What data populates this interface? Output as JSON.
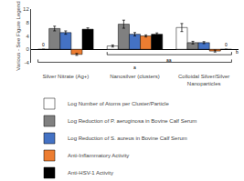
{
  "chart_data": {
    "type": "bar",
    "categories": [
      "Silver Nitrate (Ag+)",
      "Nanosilver (clusters)",
      "Colloidal Silver/Silver\nNanoparticles"
    ],
    "series": [
      {
        "name": "Log Number of Atoms per Cluster/Particle",
        "color": "#ffffff",
        "values": [
          0.0,
          1.0,
          6.5
        ],
        "errors": [
          0.0,
          0.3,
          1.2
        ]
      },
      {
        "name": "Log Reduction of P. aeruginosa in Bovine Calf Serum",
        "color": "#808080",
        "values": [
          6.2,
          7.5,
          2.0
        ],
        "errors": [
          0.7,
          1.2,
          0.4
        ]
      },
      {
        "name": "Log Reduction of S. aureus in Bovine Calf Serum",
        "color": "#4472c4",
        "values": [
          5.0,
          4.5,
          2.0
        ],
        "errors": [
          0.5,
          0.5,
          0.3
        ]
      },
      {
        "name": "Anti-Inflammatory Activity",
        "color": "#ed7d31",
        "values": [
          -1.5,
          4.0,
          -0.5
        ],
        "errors": [
          0.3,
          0.3,
          0.3
        ]
      },
      {
        "name": "Anti-HSV-1 Activity",
        "color": "#000000",
        "values": [
          6.0,
          4.5,
          0.0
        ],
        "errors": [
          0.4,
          0.4,
          0.0
        ]
      }
    ],
    "annotations": [
      {
        "text": "0",
        "category": "Silver Nitrate (Ag+)",
        "series": "Log Number of Atoms per Cluster/Particle"
      },
      {
        "text": "0",
        "category": "Colloidal Silver/Silver\nNanoparticles",
        "series": "Anti-HSV-1 Activity"
      },
      {
        "text": "b",
        "category": "Colloidal Silver/Silver\nNanoparticles",
        "series": "Anti-Inflammatory Activity"
      },
      {
        "text": "a",
        "categories": [
          "Silver Nitrate (Ag+)",
          "Nanosilver (clusters)",
          "Colloidal Silver/Silver\nNanoparticles"
        ]
      },
      {
        "text": "aa",
        "categories": [
          "Nanosilver (clusters)",
          "Colloidal Silver/Silver\nNanoparticles"
        ]
      }
    ],
    "ylabel": "Various - See Figure Legend",
    "ylim": [
      -4,
      12
    ],
    "yticks": [
      -4,
      0,
      4,
      8,
      12
    ],
    "grid": false,
    "legend": "bottom"
  }
}
